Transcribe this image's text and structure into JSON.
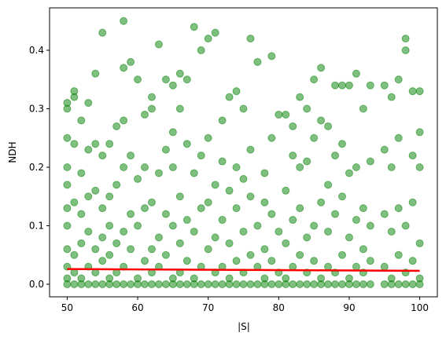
{
  "chart_data": {
    "type": "scatter",
    "xlabel": "|S|",
    "ylabel": "NDH",
    "xlim": [
      47.5,
      102.5
    ],
    "ylim": [
      -0.0215,
      0.4725
    ],
    "xticks": [
      50,
      60,
      70,
      80,
      90,
      100
    ],
    "yticks": [
      {
        "value": 0,
        "label": "0.0"
      },
      0.1,
      0.2,
      0.3,
      0.4
    ],
    "series": [
      {
        "color": "#008000",
        "opacity": 0.5,
        "x": [
          50,
          50,
          50,
          50,
          50,
          50,
          50,
          50,
          50,
          50,
          50,
          51,
          51,
          51,
          51,
          51,
          51,
          51,
          52,
          52,
          52,
          52,
          52,
          52,
          53,
          53,
          53,
          53,
          53,
          53,
          54,
          54,
          54,
          54,
          54,
          54,
          55,
          55,
          55,
          55,
          55,
          55,
          56,
          56,
          56,
          56,
          56,
          56,
          57,
          57,
          57,
          57,
          57,
          58,
          58,
          58,
          58,
          58,
          58,
          58,
          59,
          59,
          59,
          59,
          59,
          60,
          60,
          60,
          60,
          60,
          61,
          61,
          61,
          61,
          61,
          62,
          62,
          62,
          62,
          62,
          62,
          63,
          63,
          63,
          63,
          63,
          64,
          64,
          64,
          64,
          64,
          65,
          65,
          65,
          65,
          65,
          65,
          66,
          66,
          66,
          66,
          66,
          66,
          67,
          67,
          67,
          67,
          67,
          68,
          68,
          68,
          68,
          68,
          69,
          69,
          69,
          69,
          69,
          70,
          70,
          70,
          70,
          70,
          71,
          71,
          71,
          71,
          71,
          72,
          72,
          72,
          72,
          72,
          73,
          73,
          73,
          73,
          73,
          74,
          74,
          74,
          74,
          74,
          75,
          75,
          75,
          75,
          75,
          76,
          76,
          76,
          76,
          76,
          77,
          77,
          77,
          77,
          78,
          78,
          78,
          78,
          78,
          79,
          79,
          79,
          79,
          79,
          80,
          80,
          80,
          80,
          81,
          81,
          81,
          81,
          81,
          82,
          82,
          82,
          82,
          82,
          83,
          83,
          83,
          83,
          83,
          84,
          84,
          84,
          84,
          84,
          85,
          85,
          85,
          85,
          85,
          86,
          86,
          86,
          86,
          86,
          87,
          87,
          87,
          87,
          87,
          88,
          88,
          88,
          88,
          88,
          89,
          89,
          89,
          89,
          89,
          90,
          90,
          90,
          90,
          90,
          91,
          91,
          91,
          91,
          91,
          92,
          92,
          92,
          92,
          92,
          93,
          93,
          93,
          93,
          93,
          95,
          95,
          95,
          95,
          95,
          96,
          96,
          96,
          96,
          96,
          97,
          97,
          97,
          97,
          97,
          98,
          98,
          98,
          98,
          98,
          99,
          99,
          99,
          99,
          99,
          100,
          100,
          100,
          100,
          100,
          100
        ],
        "values": [
          0,
          0.01,
          0.03,
          0.06,
          0.1,
          0.13,
          0.17,
          0.2,
          0.25,
          0.3,
          0.31,
          0,
          0.02,
          0.05,
          0.14,
          0.24,
          0.32,
          0.33,
          0,
          0.01,
          0.07,
          0.12,
          0.19,
          0.28,
          0,
          0.03,
          0.09,
          0.15,
          0.23,
          0.31,
          0,
          0.02,
          0.06,
          0.16,
          0.24,
          0.36,
          0,
          0.04,
          0.08,
          0.13,
          0.22,
          0.43,
          0,
          0.01,
          0.05,
          0.1,
          0.15,
          0.24,
          0,
          0.02,
          0.07,
          0.17,
          0.27,
          0,
          0.03,
          0.09,
          0.2,
          0.28,
          0.37,
          0.45,
          0,
          0.06,
          0.12,
          0.22,
          0.38,
          0,
          0.01,
          0.1,
          0.18,
          0.35,
          0,
          0.04,
          0.13,
          0.2,
          0.29,
          0,
          0.02,
          0.06,
          0.14,
          0.3,
          0.32,
          0,
          0.03,
          0.08,
          0.19,
          0.41,
          0,
          0.05,
          0.12,
          0.23,
          0.35,
          0,
          0.01,
          0.1,
          0.2,
          0.26,
          0.34,
          0,
          0.02,
          0.07,
          0.15,
          0.3,
          0.36,
          0,
          0.04,
          0.11,
          0.24,
          0.35,
          0,
          0.01,
          0.09,
          0.19,
          0.44,
          0,
          0.03,
          0.13,
          0.22,
          0.4,
          0,
          0.06,
          0.14,
          0.25,
          0.42,
          0,
          0.02,
          0.08,
          0.17,
          0.43,
          0,
          0.03,
          0.11,
          0.21,
          0.28,
          0,
          0.01,
          0.07,
          0.16,
          0.32,
          0,
          0.04,
          0.13,
          0.2,
          0.33,
          0,
          0.02,
          0.09,
          0.18,
          0.3,
          0,
          0.05,
          0.15,
          0.23,
          0.42,
          0,
          0.03,
          0.1,
          0.38,
          0,
          0.01,
          0.06,
          0.14,
          0.19,
          0,
          0.04,
          0.12,
          0.25,
          0.39,
          0,
          0.02,
          0.09,
          0.29,
          0,
          0.01,
          0.07,
          0.16,
          0.29,
          0,
          0.03,
          0.11,
          0.22,
          0.27,
          0,
          0.05,
          0.13,
          0.2,
          0.32,
          0,
          0.02,
          0.08,
          0.21,
          0.3,
          0,
          0.04,
          0.1,
          0.25,
          0.35,
          0,
          0.01,
          0.14,
          0.28,
          0.37,
          0,
          0.03,
          0.09,
          0.17,
          0.27,
          0,
          0.02,
          0.12,
          0.22,
          0.34,
          0,
          0.05,
          0.15,
          0.24,
          0.34,
          0,
          0.01,
          0.08,
          0.19,
          0.34,
          0,
          0.03,
          0.11,
          0.2,
          0.36,
          0,
          0.02,
          0.06,
          0.13,
          0.3,
          0,
          0.04,
          0.1,
          0.21,
          0.34,
          0,
          0.03,
          0.12,
          0.23,
          0.34,
          0,
          0.01,
          0.09,
          0.2,
          0.32,
          0,
          0.05,
          0.13,
          0.25,
          0.35,
          0,
          0.02,
          0.1,
          0.42,
          0.4,
          0,
          0.04,
          0.14,
          0.22,
          0.33,
          0,
          0.01,
          0.07,
          0.2,
          0.26,
          0.33
        ]
      }
    ],
    "trend": {
      "color": "#ff0000",
      "x": [
        50,
        100
      ],
      "values": [
        0.026,
        0.023
      ]
    }
  }
}
